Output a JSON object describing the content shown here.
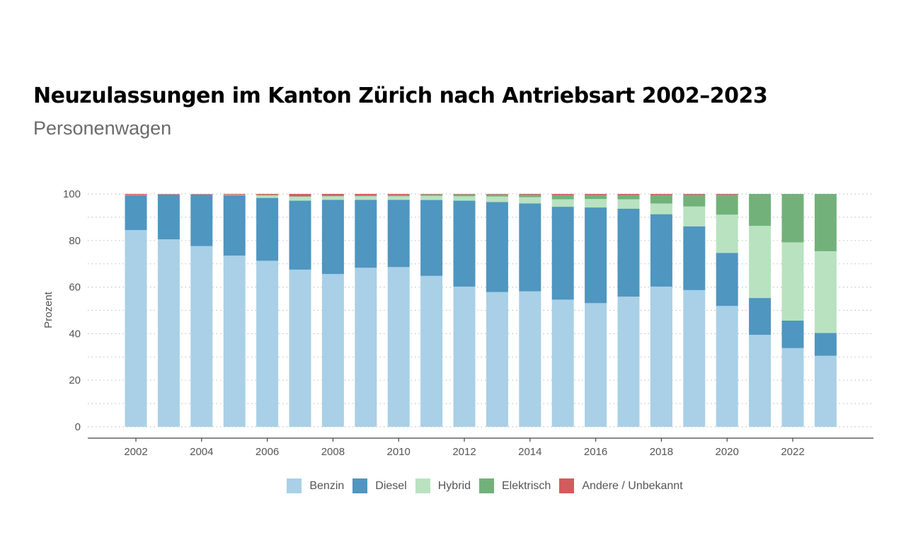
{
  "title": "Neuzulassungen im Kanton Zürich nach Antriebsart 2002–2023",
  "subtitle": "Personenwagen",
  "chart_data": {
    "type": "bar",
    "stacked": true,
    "title": "Neuzulassungen im Kanton Zürich nach Antriebsart 2002–2023",
    "subtitle": "Personenwagen",
    "xlabel": "",
    "ylabel": "Prozent",
    "ylim": [
      0,
      100
    ],
    "yticks": [
      0,
      20,
      40,
      60,
      80,
      100
    ],
    "xticks": [
      2002,
      2004,
      2006,
      2008,
      2010,
      2012,
      2014,
      2016,
      2018,
      2020,
      2022
    ],
    "categories": [
      2002,
      2003,
      2004,
      2005,
      2006,
      2007,
      2008,
      2009,
      2010,
      2011,
      2012,
      2013,
      2014,
      2015,
      2016,
      2017,
      2018,
      2019,
      2020,
      2021,
      2022,
      2023
    ],
    "series": [
      {
        "name": "Benzin",
        "color": "#a9d0e6",
        "values": [
          84.5,
          80.5,
          77.6,
          73.5,
          71.3,
          67.5,
          65.6,
          68.3,
          68.6,
          64.8,
          60.2,
          57.9,
          58.2,
          54.6,
          53.1,
          55.9,
          60.2,
          58.7,
          51.9,
          39.5,
          33.8,
          30.5
        ]
      },
      {
        "name": "Diesel",
        "color": "#4f96c0",
        "values": [
          15.0,
          19.2,
          22.1,
          26.0,
          27.0,
          29.6,
          31.9,
          29.2,
          28.9,
          32.6,
          36.9,
          38.6,
          37.7,
          39.9,
          41.1,
          37.8,
          31.1,
          27.4,
          22.8,
          15.8,
          11.8,
          9.8
        ]
      },
      {
        "name": "Hybrid",
        "color": "#b9e2c0",
        "values": [
          0.1,
          0.1,
          0.1,
          0.2,
          1.0,
          1.7,
          1.5,
          1.5,
          1.5,
          1.8,
          1.9,
          2.4,
          2.7,
          3.2,
          3.6,
          4.0,
          4.6,
          8.5,
          16.4,
          31.0,
          33.6,
          35.1
        ]
      },
      {
        "name": "Elektrisch",
        "color": "#72b27a",
        "values": [
          0.0,
          0.0,
          0.0,
          0.0,
          0.3,
          0.2,
          0.2,
          0.3,
          0.5,
          0.6,
          0.8,
          0.9,
          1.1,
          1.8,
          1.7,
          1.8,
          3.6,
          5.1,
          8.6,
          13.7,
          20.8,
          24.6
        ]
      },
      {
        "name": "Andere / Unbekannt",
        "color": "#d45b5c",
        "values": [
          0.4,
          0.2,
          0.2,
          0.3,
          0.4,
          1.0,
          0.8,
          0.7,
          0.5,
          0.2,
          0.2,
          0.2,
          0.3,
          0.5,
          0.5,
          0.5,
          0.5,
          0.3,
          0.3,
          0.0,
          0.0,
          0.0
        ]
      }
    ],
    "legend_position": "bottom",
    "grid": true
  }
}
